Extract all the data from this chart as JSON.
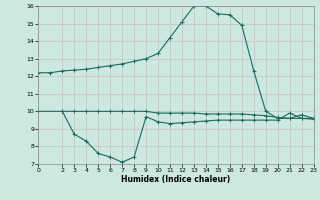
{
  "xlabel": "Humidex (Indice chaleur)",
  "bg_color": "#cce8e0",
  "line_color": "#1a6b5a",
  "grid_color": "#b8d8d0",
  "xlim": [
    0,
    23
  ],
  "ylim": [
    7,
    16
  ],
  "yticks": [
    7,
    8,
    9,
    10,
    11,
    12,
    13,
    14,
    15,
    16
  ],
  "xticks": [
    0,
    2,
    3,
    4,
    5,
    6,
    7,
    8,
    9,
    10,
    11,
    12,
    13,
    14,
    15,
    16,
    17,
    18,
    19,
    20,
    21,
    22,
    23
  ],
  "line1_x": [
    0,
    1,
    2,
    3,
    4,
    5,
    6,
    7,
    8,
    9,
    10,
    11,
    12,
    13,
    14,
    15,
    16,
    17,
    18,
    19,
    20,
    21,
    22,
    23
  ],
  "line1_y": [
    12.2,
    12.2,
    12.3,
    12.35,
    12.4,
    12.5,
    12.6,
    12.7,
    12.85,
    13.0,
    13.3,
    14.2,
    15.1,
    16.0,
    16.0,
    15.55,
    15.5,
    14.9,
    12.3,
    10.0,
    9.6,
    9.6,
    9.8,
    9.6
  ],
  "line2_x": [
    0,
    2,
    3,
    4,
    5,
    6,
    7,
    8,
    9,
    10,
    11,
    12,
    13,
    14,
    15,
    16,
    17,
    18,
    19,
    20,
    21,
    22,
    23
  ],
  "line2_y": [
    10.0,
    10.0,
    10.0,
    10.0,
    10.0,
    10.0,
    10.0,
    10.0,
    10.0,
    9.9,
    9.9,
    9.9,
    9.9,
    9.85,
    9.85,
    9.85,
    9.85,
    9.8,
    9.75,
    9.65,
    9.6,
    9.6,
    9.6
  ],
  "line3_x": [
    2,
    3,
    4,
    5,
    6,
    7,
    8,
    9,
    10,
    11,
    12,
    13,
    14,
    15,
    16,
    17,
    18,
    19,
    20,
    21,
    22,
    23
  ],
  "line3_y": [
    10.0,
    8.7,
    8.3,
    7.6,
    7.4,
    7.1,
    7.4,
    9.7,
    9.4,
    9.3,
    9.35,
    9.4,
    9.45,
    9.5,
    9.5,
    9.5,
    9.5,
    9.5,
    9.5,
    9.9,
    9.6,
    9.55
  ]
}
